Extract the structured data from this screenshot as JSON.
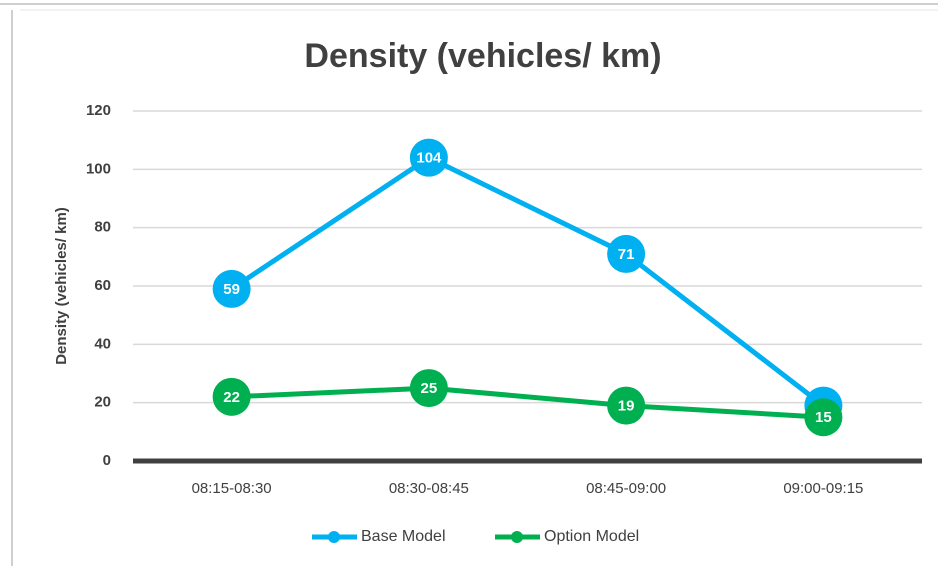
{
  "chart_data": {
    "type": "line",
    "title": "Density (vehicles/ km)",
    "y_label": "Density (vehicles/ km)",
    "categories": [
      "08:15-08:30",
      "08:30-08:45",
      "08:45-09:00",
      "09:00-09:15"
    ],
    "series": [
      {
        "name": "Base Model",
        "color": "#00b0f0",
        "values": [
          59,
          104,
          71,
          19
        ]
      },
      {
        "name": "Option Model",
        "color": "#00b050",
        "values": [
          22,
          25,
          19,
          15
        ]
      }
    ],
    "ylim": [
      0,
      120
    ],
    "yticks": [
      0,
      20,
      40,
      60,
      80,
      100,
      120
    ],
    "grid": true,
    "legend": "bottom"
  }
}
